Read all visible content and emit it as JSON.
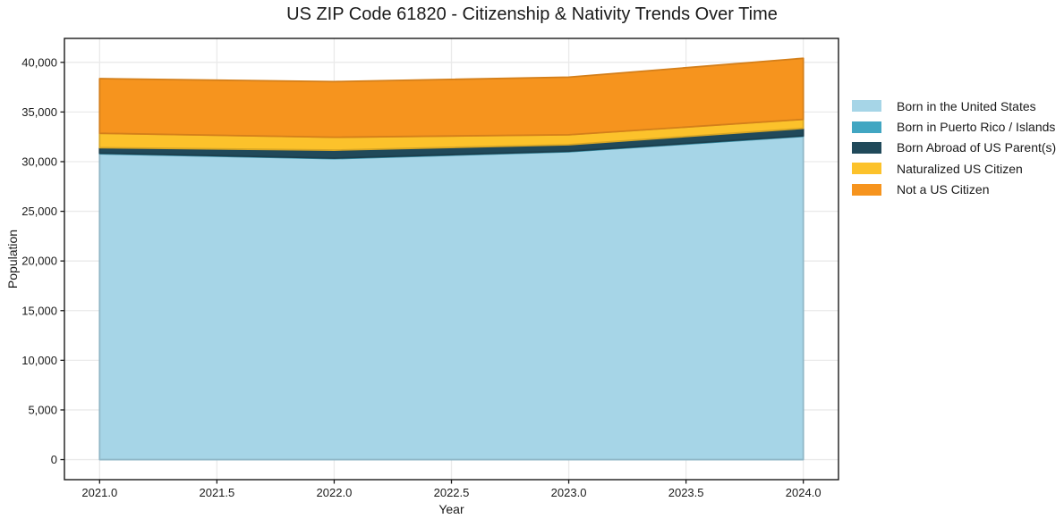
{
  "chart_data": {
    "type": "area",
    "stacked": true,
    "title": "US ZIP Code 61820 - Citizenship & Nativity Trends Over Time",
    "xlabel": "Year",
    "ylabel": "Population",
    "x": [
      2021,
      2022,
      2023,
      2024
    ],
    "series": [
      {
        "name": "Born in the United States",
        "color": "#a6d5e7",
        "values": [
          30800,
          30300,
          31000,
          32550
        ]
      },
      {
        "name": "Born in Puerto Rico / Islands",
        "color": "#41a6c2",
        "values": [
          60,
          60,
          60,
          60
        ]
      },
      {
        "name": "Born Abroad of US Parent(s)",
        "color": "#20495a",
        "values": [
          550,
          800,
          650,
          750
        ]
      },
      {
        "name": "Naturalized US Citizen",
        "color": "#fcc22b",
        "values": [
          1450,
          1300,
          1000,
          900
        ]
      },
      {
        "name": "Not a US Citizen",
        "color": "#f6941e",
        "values": [
          5500,
          5600,
          5800,
          6150
        ]
      }
    ],
    "totals": [
      38360,
      38060,
      38510,
      40410
    ],
    "xticks": [
      2021.0,
      2021.5,
      2022.0,
      2022.5,
      2023.0,
      2023.5,
      2024.0
    ],
    "xtick_labels": [
      "2021.0",
      "2021.5",
      "2022.0",
      "2022.5",
      "2023.0",
      "2023.5",
      "2024.0"
    ],
    "yticks": [
      0,
      5000,
      10000,
      15000,
      20000,
      25000,
      30000,
      35000,
      40000
    ],
    "ytick_labels": [
      "0",
      "5,000",
      "10,000",
      "15,000",
      "20,000",
      "25,000",
      "30,000",
      "35,000",
      "40,000"
    ],
    "xlim": [
      2020.85,
      2024.15
    ],
    "ylim": [
      -2020,
      42410
    ],
    "grid": true,
    "legend_position": "right-outside",
    "background_color": "#ffffff",
    "grid_color": "#eaeaea",
    "frame_color": "#1a1a1a",
    "text_color": "#1a1a1a"
  }
}
